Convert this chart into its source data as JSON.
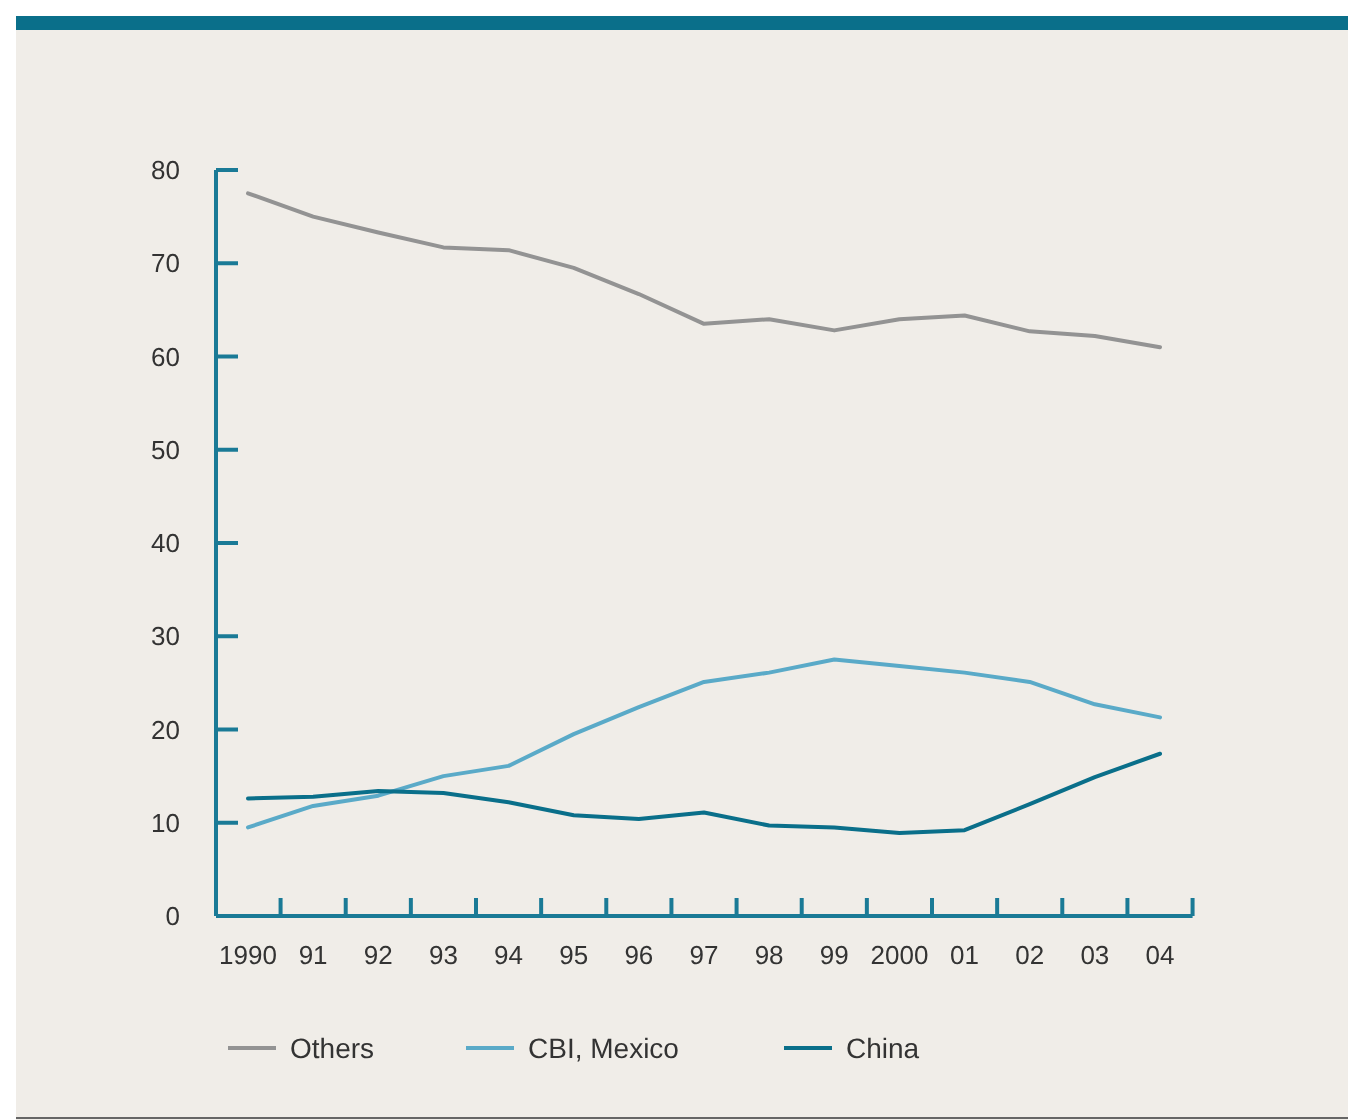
{
  "chart_data": {
    "type": "line",
    "categories": [
      "1990",
      "91",
      "92",
      "93",
      "94",
      "95",
      "96",
      "97",
      "98",
      "99",
      "2000",
      "01",
      "02",
      "03",
      "04"
    ],
    "ylim": [
      0,
      80
    ],
    "yticks": [
      0,
      10,
      20,
      30,
      40,
      50,
      60,
      70,
      80
    ],
    "grid": false,
    "legend": "bottom",
    "line_style": "solid",
    "marker": "none",
    "series": [
      {
        "name": "Others",
        "color": "#939393",
        "values": [
          77.5,
          75.0,
          73.3,
          71.7,
          71.4,
          69.5,
          66.7,
          63.5,
          64.0,
          62.8,
          64.0,
          64.4,
          62.7,
          62.2,
          61.0
        ]
      },
      {
        "name": "CBI, Mexico",
        "color": "#5aaac8",
        "values": [
          9.5,
          11.8,
          12.9,
          15.0,
          16.1,
          19.5,
          22.4,
          25.1,
          26.1,
          27.5,
          26.8,
          26.1,
          25.1,
          22.7,
          21.3
        ]
      },
      {
        "name": "China",
        "color": "#0a6f8a",
        "values": [
          12.6,
          12.8,
          13.4,
          13.2,
          12.2,
          10.8,
          10.4,
          11.1,
          9.7,
          9.5,
          8.9,
          9.2,
          12.0,
          14.9,
          17.4
        ]
      }
    ]
  }
}
